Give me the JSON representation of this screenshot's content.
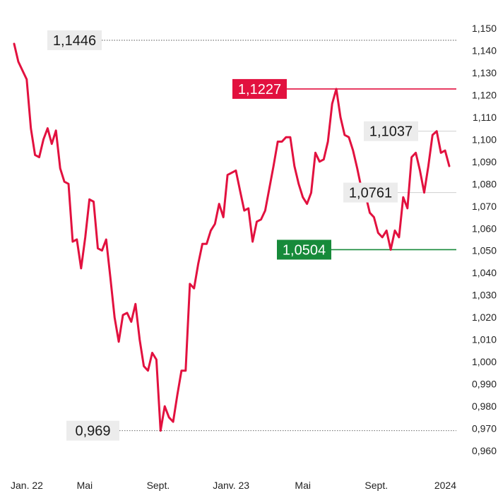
{
  "chart_data": {
    "type": "line",
    "title": "",
    "xlabel": "",
    "ylabel": "",
    "ylim": [
      0.96,
      1.15
    ],
    "y_ticks": [
      "1,150",
      "1,140",
      "1,130",
      "1,120",
      "1,110",
      "1,100",
      "1,090",
      "1,080",
      "1,070",
      "1,060",
      "1,050",
      "1,040",
      "1,030",
      "1,020",
      "1,010",
      "1,000",
      "0,990",
      "0,980",
      "0,970",
      "0,960"
    ],
    "y_tick_values": [
      1.15,
      1.14,
      1.13,
      1.12,
      1.11,
      1.1,
      1.09,
      1.08,
      1.07,
      1.06,
      1.05,
      1.04,
      1.03,
      1.02,
      1.01,
      1.0,
      0.99,
      0.98,
      0.97,
      0.96
    ],
    "x_ticks": [
      {
        "label": "Jan. 22",
        "date": "2022-01-01"
      },
      {
        "label": "Mai",
        "date": "2022-05-01"
      },
      {
        "label": "Sept.",
        "date": "2022-09-01"
      },
      {
        "label": "Janv. 23",
        "date": "2023-01-01"
      },
      {
        "label": "Mai",
        "date": "2023-05-01"
      },
      {
        "label": "Sept.",
        "date": "2023-09-01"
      },
      {
        "label": "2024",
        "date": "2024-01-01"
      }
    ],
    "grid": false,
    "line_color": "#e2113f",
    "series": [
      {
        "name": "",
        "points": [
          [
            "2022-01-03",
            1.143
          ],
          [
            "2022-01-10",
            1.135
          ],
          [
            "2022-01-17",
            1.131
          ],
          [
            "2022-01-24",
            1.127
          ],
          [
            "2022-01-31",
            1.105
          ],
          [
            "2022-02-07",
            1.093
          ],
          [
            "2022-02-14",
            1.092
          ],
          [
            "2022-02-21",
            1.1
          ],
          [
            "2022-02-28",
            1.105
          ],
          [
            "2022-03-07",
            1.098
          ],
          [
            "2022-03-14",
            1.104
          ],
          [
            "2022-03-21",
            1.087
          ],
          [
            "2022-03-28",
            1.081
          ],
          [
            "2022-04-04",
            1.08
          ],
          [
            "2022-04-11",
            1.054
          ],
          [
            "2022-04-18",
            1.055
          ],
          [
            "2022-04-25",
            1.042
          ],
          [
            "2022-05-02",
            1.056
          ],
          [
            "2022-05-09",
            1.073
          ],
          [
            "2022-05-16",
            1.072
          ],
          [
            "2022-05-23",
            1.051
          ],
          [
            "2022-05-30",
            1.05
          ],
          [
            "2022-06-06",
            1.055
          ],
          [
            "2022-06-13",
            1.038
          ],
          [
            "2022-06-20",
            1.02
          ],
          [
            "2022-06-27",
            1.009
          ],
          [
            "2022-07-04",
            1.021
          ],
          [
            "2022-07-11",
            1.022
          ],
          [
            "2022-07-18",
            1.018
          ],
          [
            "2022-07-25",
            1.026
          ],
          [
            "2022-08-01",
            1.01
          ],
          [
            "2022-08-08",
            0.998
          ],
          [
            "2022-08-15",
            0.996
          ],
          [
            "2022-08-22",
            1.004
          ],
          [
            "2022-08-29",
            1.001
          ],
          [
            "2022-09-05",
            0.969
          ],
          [
            "2022-09-12",
            0.98
          ],
          [
            "2022-09-19",
            0.975
          ],
          [
            "2022-09-26",
            0.973
          ],
          [
            "2022-10-03",
            0.985
          ],
          [
            "2022-10-10",
            0.996
          ],
          [
            "2022-10-17",
            0.996
          ],
          [
            "2022-10-24",
            1.035
          ],
          [
            "2022-10-31",
            1.033
          ],
          [
            "2022-11-07",
            1.044
          ],
          [
            "2022-11-14",
            1.053
          ],
          [
            "2022-11-21",
            1.053
          ],
          [
            "2022-11-28",
            1.059
          ],
          [
            "2022-12-05",
            1.062
          ],
          [
            "2022-12-12",
            1.071
          ],
          [
            "2022-12-19",
            1.065
          ],
          [
            "2022-12-26",
            1.084
          ],
          [
            "2023-01-02",
            1.085
          ],
          [
            "2023-01-09",
            1.086
          ],
          [
            "2023-01-16",
            1.077
          ],
          [
            "2023-01-23",
            1.068
          ],
          [
            "2023-01-30",
            1.069
          ],
          [
            "2023-02-06",
            1.054
          ],
          [
            "2023-02-13",
            1.063
          ],
          [
            "2023-02-20",
            1.064
          ],
          [
            "2023-02-27",
            1.068
          ],
          [
            "2023-03-06",
            1.078
          ],
          [
            "2023-03-13",
            1.088
          ],
          [
            "2023-03-20",
            1.099
          ],
          [
            "2023-03-27",
            1.099
          ],
          [
            "2023-04-03",
            1.101
          ],
          [
            "2023-04-10",
            1.101
          ],
          [
            "2023-04-17",
            1.088
          ],
          [
            "2023-04-24",
            1.08
          ],
          [
            "2023-05-01",
            1.074
          ],
          [
            "2023-05-08",
            1.071
          ],
          [
            "2023-05-15",
            1.076
          ],
          [
            "2023-05-22",
            1.094
          ],
          [
            "2023-05-29",
            1.09
          ],
          [
            "2023-06-05",
            1.091
          ],
          [
            "2023-06-12",
            1.099
          ],
          [
            "2023-06-19",
            1.116
          ],
          [
            "2023-06-26",
            1.1227
          ],
          [
            "2023-07-03",
            1.11
          ],
          [
            "2023-07-10",
            1.102
          ],
          [
            "2023-07-17",
            1.101
          ],
          [
            "2023-07-24",
            1.095
          ],
          [
            "2023-07-31",
            1.087
          ],
          [
            "2023-08-07",
            1.078
          ],
          [
            "2023-08-14",
            1.075
          ],
          [
            "2023-08-21",
            1.067
          ],
          [
            "2023-08-28",
            1.065
          ],
          [
            "2023-09-04",
            1.058
          ],
          [
            "2023-09-11",
            1.056
          ],
          [
            "2023-09-18",
            1.059
          ],
          [
            "2023-09-25",
            1.0504
          ],
          [
            "2023-10-02",
            1.059
          ],
          [
            "2023-10-09",
            1.056
          ],
          [
            "2023-10-16",
            1.074
          ],
          [
            "2023-10-23",
            1.069
          ],
          [
            "2023-10-30",
            1.092
          ],
          [
            "2023-11-06",
            1.094
          ],
          [
            "2023-11-13",
            1.086
          ],
          [
            "2023-11-20",
            1.0761
          ],
          [
            "2023-11-27",
            1.088
          ],
          [
            "2023-12-04",
            1.102
          ],
          [
            "2023-12-11",
            1.1037
          ],
          [
            "2023-12-18",
            1.094
          ],
          [
            "2023-12-25",
            1.095
          ],
          [
            "2024-01-01",
            1.088
          ]
        ]
      }
    ],
    "annotations": [
      {
        "label": "1,1446",
        "value": 1.1446,
        "date": "2022-01-03",
        "style": "grey",
        "line": "dotted"
      },
      {
        "label": "1,1227",
        "value": 1.1227,
        "date": "2023-06-26",
        "style": "red",
        "line": "solid"
      },
      {
        "label": "1,1037",
        "value": 1.1037,
        "date": "2023-12-11",
        "style": "grey",
        "line": "solid-light"
      },
      {
        "label": "1,0761",
        "value": 1.0761,
        "date": "2023-11-20",
        "style": "grey",
        "line": "solid-light"
      },
      {
        "label": "1,0504",
        "value": 1.0504,
        "date": "2023-09-25",
        "style": "green",
        "line": "solid"
      },
      {
        "label": "0,969",
        "value": 0.969,
        "date": "2022-09-05",
        "style": "grey",
        "line": "dotted"
      }
    ],
    "colors": {
      "line": "#e2113f",
      "red_badge": "#e2113f",
      "green_badge": "#178a3a",
      "grey_badge": "#ececec",
      "badge_text_dark": "#1a1a1a",
      "badge_text_light": "#ffffff"
    }
  }
}
